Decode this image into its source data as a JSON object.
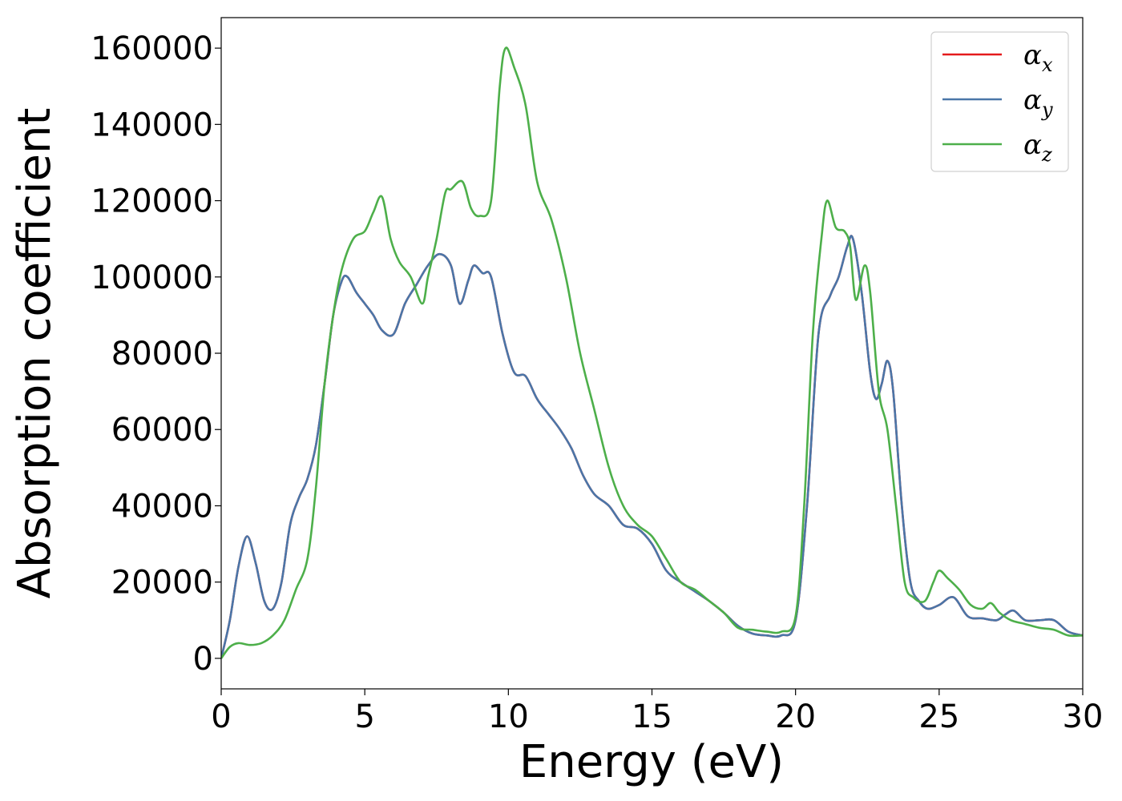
{
  "chart_data": {
    "type": "line",
    "xlabel": "Energy (eV)",
    "ylabel": "Absorption coefficient",
    "xlim": [
      0,
      30
    ],
    "ylim": [
      -8000,
      168000
    ],
    "xticks": [
      0,
      5,
      10,
      15,
      20,
      25,
      30
    ],
    "xtick_labels": [
      "0",
      "5",
      "10",
      "15",
      "20",
      "25",
      "30"
    ],
    "yticks": [
      0,
      20000,
      40000,
      60000,
      80000,
      100000,
      120000,
      140000,
      160000
    ],
    "ytick_labels": [
      "0",
      "20000",
      "40000",
      "60000",
      "80000",
      "100000",
      "120000",
      "140000",
      "160000"
    ],
    "grid": false,
    "legend_position": "top-right",
    "series": [
      {
        "name": "α",
        "subscript": "x",
        "color": "#e41a1c",
        "x": [
          0,
          0.3,
          0.6,
          0.9,
          1.2,
          1.5,
          1.8,
          2.1,
          2.4,
          2.7,
          3.0,
          3.3,
          3.6,
          3.9,
          4.2,
          4.4,
          4.7,
          5.0,
          5.3,
          5.6,
          6.0,
          6.4,
          6.8,
          7.2,
          7.6,
          8.0,
          8.3,
          8.6,
          8.8,
          9.1,
          9.4,
          9.8,
          10.2,
          10.6,
          11.0,
          11.4,
          11.8,
          12.2,
          12.6,
          13.0,
          13.5,
          14.0,
          14.5,
          15.0,
          15.5,
          16.0,
          16.5,
          17.0,
          17.5,
          18.0,
          18.5,
          19.0,
          19.5,
          20.0,
          20.4,
          20.8,
          21.2,
          21.5,
          21.8,
          22.0,
          22.3,
          22.6,
          22.8,
          23.0,
          23.2,
          23.4,
          23.7,
          24.0,
          24.3,
          24.6,
          25.0,
          25.5,
          26.0,
          26.5,
          27.0,
          27.3,
          27.6,
          28.0,
          28.5,
          29.0,
          29.5,
          30.0
        ],
        "y": [
          0,
          10000,
          24000,
          32000,
          25000,
          15000,
          13000,
          20000,
          35000,
          42000,
          47000,
          56000,
          72000,
          90000,
          99000,
          100000,
          96000,
          93000,
          90000,
          86000,
          85000,
          93000,
          98000,
          103000,
          106000,
          103000,
          93000,
          99000,
          103000,
          101000,
          100000,
          85000,
          75000,
          74000,
          68000,
          64000,
          60000,
          55000,
          48000,
          43000,
          40000,
          35000,
          34000,
          30000,
          23000,
          20000,
          17500,
          15000,
          12000,
          8500,
          6500,
          6000,
          6000,
          10000,
          40000,
          85000,
          95000,
          100000,
          108000,
          110000,
          96000,
          75000,
          68000,
          72000,
          78000,
          70000,
          40000,
          20000,
          15000,
          13000,
          14000,
          16000,
          11000,
          10500,
          10000,
          11500,
          12500,
          10000,
          10000,
          10000,
          7000,
          6000
        ]
      },
      {
        "name": "α",
        "subscript": "y",
        "color": "#4a76a8",
        "x": [
          0,
          0.3,
          0.6,
          0.9,
          1.2,
          1.5,
          1.8,
          2.1,
          2.4,
          2.7,
          3.0,
          3.3,
          3.6,
          3.9,
          4.2,
          4.4,
          4.7,
          5.0,
          5.3,
          5.6,
          6.0,
          6.4,
          6.8,
          7.2,
          7.6,
          8.0,
          8.3,
          8.6,
          8.8,
          9.1,
          9.4,
          9.8,
          10.2,
          10.6,
          11.0,
          11.4,
          11.8,
          12.2,
          12.6,
          13.0,
          13.5,
          14.0,
          14.5,
          15.0,
          15.5,
          16.0,
          16.5,
          17.0,
          17.5,
          18.0,
          18.5,
          19.0,
          19.5,
          20.0,
          20.4,
          20.8,
          21.2,
          21.5,
          21.8,
          22.0,
          22.3,
          22.6,
          22.8,
          23.0,
          23.2,
          23.4,
          23.7,
          24.0,
          24.3,
          24.6,
          25.0,
          25.5,
          26.0,
          26.5,
          27.0,
          27.3,
          27.6,
          28.0,
          28.5,
          29.0,
          29.5,
          30.0
        ],
        "y": [
          0,
          10000,
          24000,
          32000,
          25000,
          15000,
          13000,
          20000,
          35000,
          42000,
          47000,
          56000,
          72000,
          90000,
          99000,
          100000,
          96000,
          93000,
          90000,
          86000,
          85000,
          93000,
          98000,
          103000,
          106000,
          103000,
          93000,
          99000,
          103000,
          101000,
          100000,
          85000,
          75000,
          74000,
          68000,
          64000,
          60000,
          55000,
          48000,
          43000,
          40000,
          35000,
          34000,
          30000,
          23000,
          20000,
          17500,
          15000,
          12000,
          8500,
          6500,
          6000,
          6000,
          10000,
          40000,
          85000,
          95000,
          100000,
          108000,
          110000,
          96000,
          75000,
          68000,
          72000,
          78000,
          70000,
          40000,
          20000,
          15000,
          13000,
          14000,
          16000,
          11000,
          10500,
          10000,
          11500,
          12500,
          10000,
          10000,
          10000,
          7000,
          6000
        ]
      },
      {
        "name": "α",
        "subscript": "z",
        "color": "#4daf4a",
        "x": [
          0,
          0.3,
          0.6,
          1.0,
          1.4,
          1.8,
          2.2,
          2.6,
          3.0,
          3.3,
          3.6,
          3.9,
          4.2,
          4.6,
          5.0,
          5.3,
          5.6,
          5.9,
          6.2,
          6.6,
          7.0,
          7.2,
          7.5,
          7.8,
          8.0,
          8.4,
          8.7,
          9.0,
          9.4,
          9.7,
          9.9,
          10.2,
          10.6,
          11.0,
          11.5,
          12.0,
          12.5,
          13.0,
          13.5,
          14.0,
          14.5,
          15.0,
          15.5,
          16.0,
          16.5,
          17.0,
          17.5,
          18.0,
          18.5,
          19.0,
          19.5,
          20.0,
          20.3,
          20.6,
          20.9,
          21.1,
          21.4,
          21.7,
          21.9,
          22.1,
          22.4,
          22.6,
          22.9,
          23.2,
          23.5,
          23.8,
          24.1,
          24.5,
          24.8,
          25.0,
          25.3,
          25.7,
          26.1,
          26.5,
          26.8,
          27.1,
          27.5,
          28.0,
          28.5,
          29.0,
          29.5,
          30.0
        ],
        "y": [
          0,
          3000,
          4000,
          3500,
          4000,
          6000,
          10000,
          18000,
          26000,
          45000,
          72000,
          90000,
          102000,
          110000,
          112000,
          117000,
          121000,
          110000,
          104000,
          100000,
          93000,
          100000,
          110000,
          122000,
          123000,
          125000,
          118000,
          116000,
          120000,
          150000,
          160000,
          155000,
          145000,
          125000,
          115000,
          100000,
          80000,
          65000,
          50000,
          40000,
          35000,
          32000,
          26000,
          20000,
          18000,
          15000,
          12000,
          8000,
          7500,
          7000,
          7000,
          11000,
          40000,
          85000,
          110000,
          120000,
          113000,
          112000,
          108000,
          94000,
          103000,
          96000,
          70000,
          60000,
          40000,
          20000,
          16000,
          15000,
          20000,
          23000,
          21000,
          18000,
          14000,
          13000,
          14500,
          12000,
          10000,
          9000,
          8000,
          7500,
          6000,
          6000
        ]
      }
    ]
  }
}
